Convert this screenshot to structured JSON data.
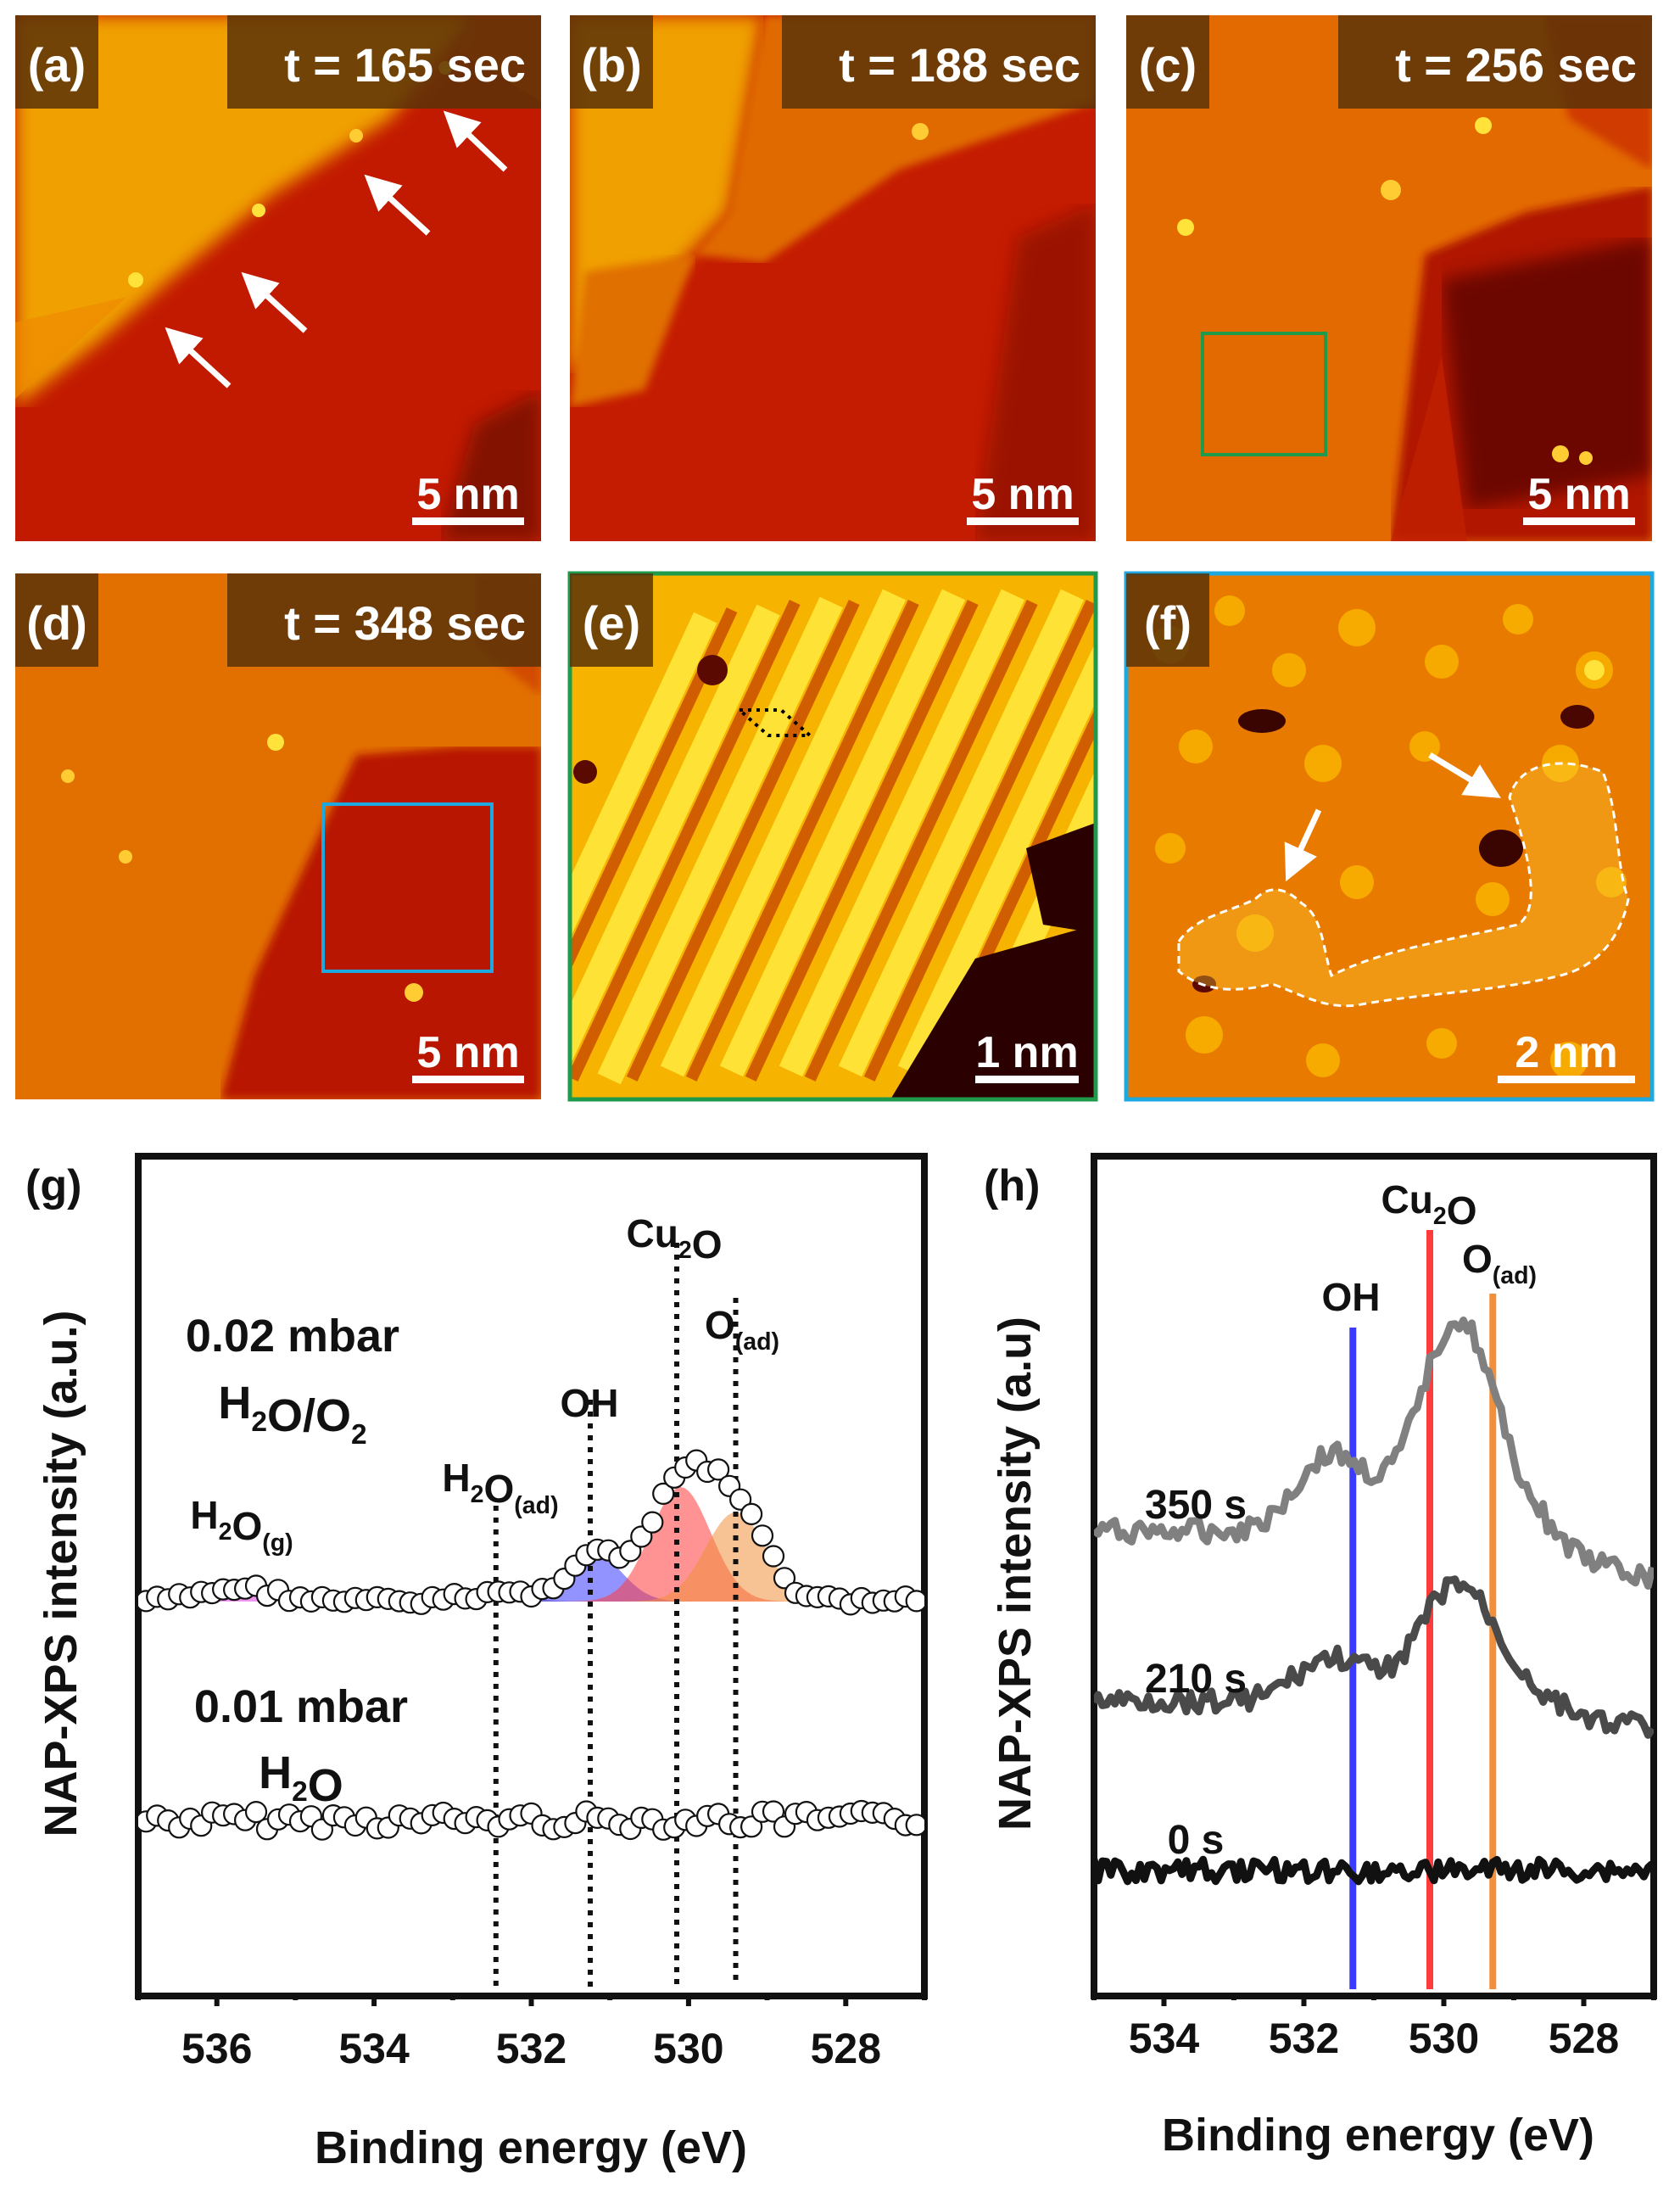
{
  "panels": [
    {
      "label": "(a)",
      "time": "t = 165 sec",
      "scale": "5 nm"
    },
    {
      "label": "(b)",
      "time": "t = 188 sec",
      "scale": "5 nm"
    },
    {
      "label": "(c)",
      "time": "t = 256 sec",
      "scale": "5 nm"
    },
    {
      "label": "(d)",
      "time": "t = 348 sec",
      "scale": "5 nm"
    },
    {
      "label": "(e)",
      "time": "",
      "scale": "1 nm"
    },
    {
      "label": "(f)",
      "time": "",
      "scale": "2 nm"
    }
  ],
  "colors": {
    "stm_dark": "#b81400",
    "stm_mid": "#e25a00",
    "stm_bright": "#f2a300",
    "stm_highlight": "#ffe23a",
    "label_bg": "#5a3208",
    "green_box": "#1f9a4a",
    "blue_box": "#1ea8e0",
    "oh": "#3b3bff",
    "cu2o": "#ff3b3b",
    "oad": "#f0903c",
    "h2og": "#e040e0",
    "h2oad": "#7a3a7a"
  },
  "chart_data": [
    {
      "type": "scatter",
      "panel_label": "(g)",
      "title": "",
      "xlabel": "Binding energy (eV)",
      "ylabel": "NAP-XPS intensity (a.u.)",
      "xlim": [
        537,
        527
      ],
      "xticks": [
        536,
        534,
        532,
        530,
        528
      ],
      "conditions": [
        {
          "name_line1": "0.02 mbar",
          "name_line2": "H2O/O2"
        },
        {
          "name_line1": "0.01 mbar",
          "name_line2": "H2O"
        }
      ],
      "markers": [
        {
          "name": "H2O(ad)",
          "base": "H",
          "sub": "2",
          "rest": "O",
          "sub2": "(ad)",
          "x": 532.45
        },
        {
          "name": "OH",
          "base": "OH",
          "sub": "",
          "rest": "",
          "sub2": "",
          "x": 531.25
        },
        {
          "name": "Cu2O",
          "base": "Cu",
          "sub": "2",
          "rest": "O",
          "sub2": "",
          "x": 530.15
        },
        {
          "name": "O(ad)",
          "base": "O",
          "sub": "",
          "rest": "",
          "sub2": "(ad)",
          "x": 529.4
        }
      ],
      "gas_label": {
        "base": "H",
        "sub": "2",
        "rest": "O",
        "sub2": "(g)"
      },
      "components": [
        {
          "name": "H2O(g)",
          "center": 535.7,
          "amplitude": 0.12,
          "width": 0.45,
          "color": "#e040e0"
        },
        {
          "name": "H2O(ad)",
          "center": 532.45,
          "amplitude": 0.08,
          "width": 0.35,
          "color": "#7a3a7a"
        },
        {
          "name": "OH",
          "center": 531.2,
          "amplitude": 0.42,
          "width": 0.35,
          "color": "#3b3bff"
        },
        {
          "name": "Cu2O",
          "center": 530.1,
          "amplitude": 1.0,
          "width": 0.38,
          "color": "#ff3b3b"
        },
        {
          "name": "O(ad)",
          "center": 529.4,
          "amplitude": 0.78,
          "width": 0.38,
          "color": "#f0903c"
        }
      ]
    },
    {
      "type": "line",
      "panel_label": "(h)",
      "title": "",
      "xlabel": "Binding energy (eV)",
      "ylabel": "NAP-XPS intensity (a.u)",
      "xlim": [
        535,
        527
      ],
      "xticks": [
        534,
        532,
        530,
        528
      ],
      "markers": [
        {
          "name": "OH",
          "base": "OH",
          "sub": "",
          "rest": "",
          "sub2": "",
          "x": 531.3,
          "color": "#3b3bff"
        },
        {
          "name": "Cu2O",
          "base": "Cu",
          "sub": "2",
          "rest": "O",
          "sub2": "",
          "x": 530.2,
          "color": "#ff3b3b"
        },
        {
          "name": "O(ad)",
          "base": "O",
          "sub": "",
          "rest": "",
          "sub2": "(ad)",
          "x": 529.3,
          "color": "#f0903c"
        }
      ],
      "series": [
        {
          "name": "350 s",
          "color": "#808080",
          "peak": 1.0
        },
        {
          "name": "210 s",
          "color": "#4a4a4a",
          "peak": 0.55
        },
        {
          "name": "0 s",
          "color": "#111111",
          "peak": 0.0
        }
      ]
    }
  ]
}
